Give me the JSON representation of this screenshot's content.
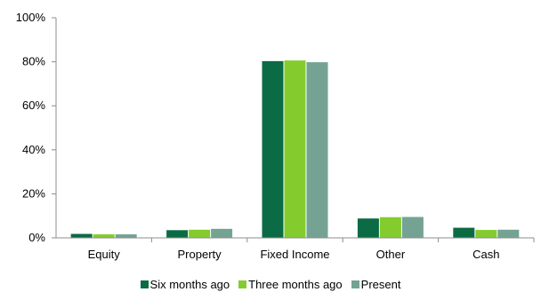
{
  "chart_data": {
    "type": "bar",
    "categories": [
      "Equity",
      "Property",
      "Fixed Income",
      "Other",
      "Cash"
    ],
    "series": [
      {
        "name": "Six months ago",
        "values": [
          1.8,
          3.5,
          80.3,
          8.8,
          4.6
        ],
        "color": "#0b6b45"
      },
      {
        "name": "Three months ago",
        "values": [
          1.6,
          3.7,
          80.6,
          9.4,
          3.6
        ],
        "color": "#84cc2e"
      },
      {
        "name": "Present",
        "values": [
          1.6,
          4.1,
          79.8,
          9.5,
          3.7
        ],
        "color": "#74a394"
      }
    ],
    "ylim": [
      0,
      100
    ],
    "yticks": [
      0,
      20,
      40,
      60,
      80,
      100
    ],
    "ytick_labels": [
      "0%",
      "20%",
      "40%",
      "60%",
      "80%",
      "100%"
    ],
    "grid": false,
    "legend_position": "bottom"
  }
}
